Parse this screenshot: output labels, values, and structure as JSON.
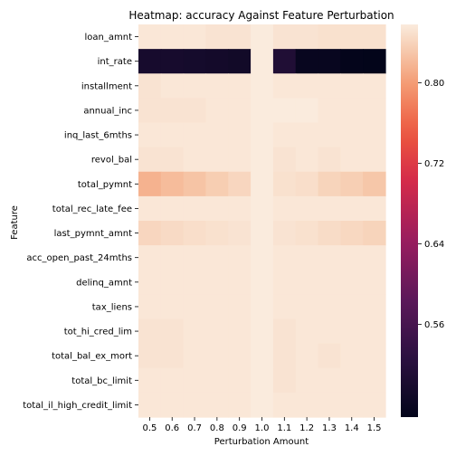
{
  "chart_data": {
    "type": "heatmap",
    "title": "Heatmap: accuracy Against Feature Perturbation",
    "xlabel": "Perturbation Amount",
    "ylabel": "Feature",
    "x": [
      "0.5",
      "0.6",
      "0.7",
      "0.8",
      "0.9",
      "1.0",
      "1.1",
      "1.2",
      "1.3",
      "1.4",
      "1.5"
    ],
    "y": [
      "loan_amnt",
      "int_rate",
      "installment",
      "annual_inc",
      "inq_last_6mths",
      "revol_bal",
      "total_pymnt",
      "total_rec_late_fee",
      "last_pymnt_amnt",
      "acc_open_past_24mths",
      "delinq_amnt",
      "tax_liens",
      "tot_hi_cred_lim",
      "total_bal_ex_mort",
      "total_bc_limit",
      "total_il_high_credit_limit"
    ],
    "values": [
      [
        0.855,
        0.855,
        0.855,
        0.852,
        0.852,
        0.858,
        0.852,
        0.852,
        0.85,
        0.85,
        0.85
      ],
      [
        0.497,
        0.497,
        0.495,
        0.493,
        0.49,
        0.858,
        0.51,
        0.475,
        0.475,
        0.47,
        0.468
      ],
      [
        0.852,
        0.855,
        0.855,
        0.855,
        0.855,
        0.858,
        0.855,
        0.855,
        0.855,
        0.855,
        0.855
      ],
      [
        0.852,
        0.852,
        0.852,
        0.855,
        0.855,
        0.858,
        0.858,
        0.858,
        0.855,
        0.855,
        0.855
      ],
      [
        0.855,
        0.855,
        0.855,
        0.855,
        0.855,
        0.858,
        0.855,
        0.855,
        0.855,
        0.855,
        0.855
      ],
      [
        0.852,
        0.852,
        0.855,
        0.855,
        0.855,
        0.858,
        0.852,
        0.855,
        0.852,
        0.855,
        0.855
      ],
      [
        0.815,
        0.822,
        0.828,
        0.835,
        0.842,
        0.858,
        0.85,
        0.848,
        0.84,
        0.836,
        0.83
      ],
      [
        0.855,
        0.855,
        0.855,
        0.855,
        0.855,
        0.858,
        0.855,
        0.855,
        0.855,
        0.855,
        0.855
      ],
      [
        0.842,
        0.845,
        0.848,
        0.85,
        0.852,
        0.858,
        0.852,
        0.85,
        0.846,
        0.843,
        0.84
      ],
      [
        0.855,
        0.855,
        0.855,
        0.855,
        0.855,
        0.858,
        0.855,
        0.855,
        0.855,
        0.855,
        0.855
      ],
      [
        0.855,
        0.855,
        0.855,
        0.855,
        0.855,
        0.858,
        0.855,
        0.855,
        0.855,
        0.855,
        0.855
      ],
      [
        0.855,
        0.855,
        0.855,
        0.855,
        0.855,
        0.858,
        0.855,
        0.855,
        0.855,
        0.855,
        0.855
      ],
      [
        0.852,
        0.852,
        0.855,
        0.855,
        0.855,
        0.858,
        0.852,
        0.855,
        0.855,
        0.855,
        0.855
      ],
      [
        0.852,
        0.852,
        0.855,
        0.855,
        0.855,
        0.858,
        0.852,
        0.855,
        0.852,
        0.855,
        0.855
      ],
      [
        0.855,
        0.855,
        0.855,
        0.855,
        0.855,
        0.858,
        0.852,
        0.855,
        0.855,
        0.855,
        0.855
      ],
      [
        0.855,
        0.855,
        0.855,
        0.855,
        0.855,
        0.858,
        0.855,
        0.855,
        0.855,
        0.855,
        0.855
      ]
    ],
    "colorbar": {
      "ticks": [
        0.56,
        0.64,
        0.72,
        0.8
      ],
      "tick_labels": [
        "0.56",
        "0.64",
        "0.72",
        "0.80"
      ],
      "range": [
        0.468,
        0.858
      ],
      "colormap": "rocket"
    }
  }
}
